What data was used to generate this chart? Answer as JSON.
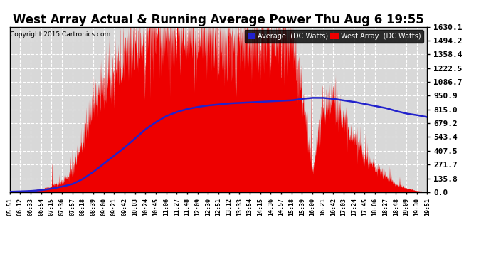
{
  "title": "West Array Actual & Running Average Power Thu Aug 6 19:55",
  "copyright": "Copyright 2015 Cartronics.com",
  "legend_avg": "Average  (DC Watts)",
  "legend_west": "West Array  (DC Watts)",
  "ymax": 1630.1,
  "yticks": [
    0.0,
    135.8,
    271.7,
    407.5,
    543.4,
    679.2,
    815.0,
    950.9,
    1086.7,
    1222.5,
    1358.4,
    1494.2,
    1630.1
  ],
  "bg_color": "#ffffff",
  "plot_bg_color": "#d8d8d8",
  "grid_color": "#ffffff",
  "bar_color": "#ee0000",
  "avg_color": "#2222cc",
  "title_fontsize": 12,
  "xtick_labels": [
    "05:51",
    "06:12",
    "06:33",
    "06:54",
    "07:15",
    "07:36",
    "07:57",
    "08:18",
    "08:39",
    "09:00",
    "09:21",
    "09:42",
    "10:03",
    "10:24",
    "10:45",
    "11:06",
    "11:27",
    "11:48",
    "12:09",
    "12:30",
    "12:51",
    "13:12",
    "13:33",
    "13:54",
    "14:15",
    "14:36",
    "14:57",
    "15:18",
    "15:39",
    "16:00",
    "16:21",
    "16:42",
    "17:03",
    "17:24",
    "17:45",
    "18:06",
    "18:27",
    "18:48",
    "19:09",
    "19:30",
    "19:51"
  ],
  "west_envelope": [
    5,
    10,
    20,
    30,
    60,
    100,
    200,
    500,
    900,
    1100,
    1200,
    1350,
    1450,
    1500,
    1530,
    1550,
    1540,
    1540,
    1530,
    1520,
    1520,
    1520,
    1510,
    1510,
    1500,
    1490,
    1490,
    1490,
    1000,
    200,
    800,
    900,
    680,
    500,
    350,
    250,
    150,
    80,
    40,
    15,
    5
  ],
  "avg_values": [
    5,
    8,
    12,
    20,
    35,
    55,
    80,
    130,
    200,
    280,
    360,
    440,
    530,
    620,
    690,
    750,
    790,
    820,
    840,
    855,
    865,
    875,
    880,
    885,
    890,
    895,
    900,
    905,
    920,
    930,
    930,
    920,
    905,
    890,
    870,
    850,
    830,
    800,
    775,
    760,
    740
  ]
}
